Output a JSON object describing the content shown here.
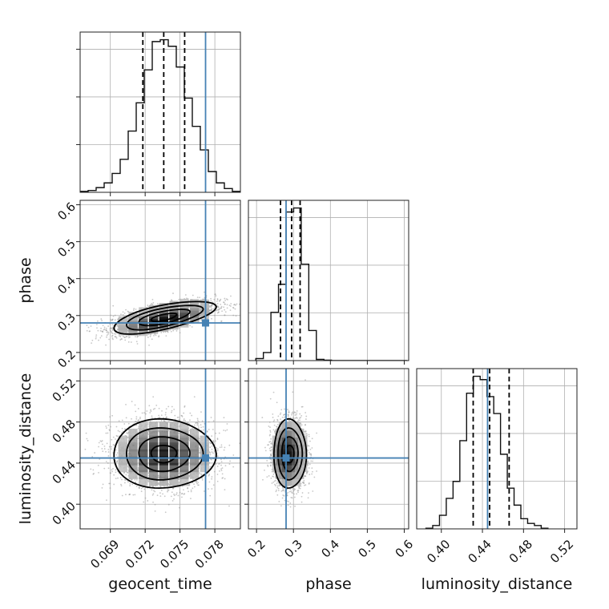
{
  "chart_data": {
    "type": "corner",
    "parameters": [
      "geocent_time",
      "phase",
      "luminosity_distance"
    ],
    "truths": [
      0.0772,
      0.28,
      0.445
    ],
    "truth_color": "#4682b4",
    "ranges": [
      [
        0.0664,
        0.0802
      ],
      [
        0.178,
        0.612
      ],
      [
        0.376,
        0.532
      ]
    ],
    "ticks": [
      [
        "0.069",
        "0.072",
        "0.075",
        "0.078"
      ],
      [
        "0.2",
        "0.3",
        "0.4",
        "0.5",
        "0.6"
      ],
      [
        "0.40",
        "0.44",
        "0.48",
        "0.52"
      ]
    ],
    "y_ticks_phase": [
      "0.2",
      "0.3",
      "0.4",
      "0.5",
      "0.6"
    ],
    "y_ticks_luminosity_distance": [
      "0.40",
      "0.44",
      "0.48",
      "0.52"
    ],
    "quantiles": [
      [
        0.0718,
        0.0736,
        0.0754
      ],
      [
        0.265,
        0.295,
        0.318
      ],
      [
        0.431,
        0.447,
        0.466
      ]
    ],
    "histograms": [
      {
        "param": "geocent_time",
        "bin_start": 0.0664,
        "bin_width": 0.00069,
        "counts": [
          1,
          2,
          5,
          10,
          20,
          35,
          65,
          95,
          130,
          160,
          162,
          155,
          133,
          100,
          70,
          45,
          22,
          10,
          4,
          1
        ]
      },
      {
        "param": "phase",
        "bin_start": 0.198,
        "bin_width": 0.0205,
        "counts": [
          5,
          20,
          120,
          190,
          370,
          380,
          240,
          75,
          3,
          1,
          0,
          0,
          0,
          0,
          0,
          0,
          0,
          0,
          0,
          0
        ]
      },
      {
        "param": "luminosity_distance",
        "bin_start": 0.385,
        "bin_width": 0.0066,
        "counts": [
          1,
          5,
          20,
          45,
          70,
          130,
          200,
          225,
          220,
          195,
          170,
          110,
          60,
          35,
          15,
          8,
          5,
          1
        ]
      }
    ],
    "gaussian_2d": [
      {
        "x": "geocent_time",
        "y": "phase",
        "mean": [
          0.0736,
          0.295
        ],
        "std": [
          0.0022,
          0.022
        ],
        "corr": 0.65
      },
      {
        "x": "geocent_time",
        "y": "luminosity_distance",
        "mean": [
          0.0736,
          0.449
        ],
        "std": [
          0.0022,
          0.0168
        ],
        "corr": 0.0
      },
      {
        "x": "phase",
        "y": "luminosity_distance",
        "mean": [
          0.29,
          0.449
        ],
        "std": [
          0.022,
          0.0168
        ],
        "corr": 0.0
      }
    ],
    "contour_levels_sigma": [
      0.5,
      1.0,
      1.5,
      2.0
    ]
  }
}
